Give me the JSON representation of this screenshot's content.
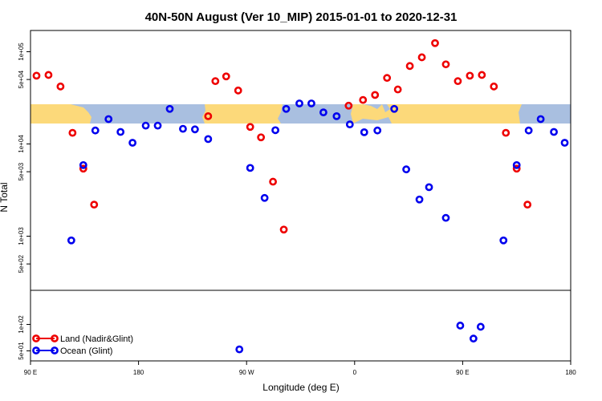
{
  "chart_data": {
    "type": "scatter",
    "title": "40N-50N August (Ver 10_MIP)   2015-01-01 to 2020-12-31",
    "xlabel": "Longitude (deg E)",
    "ylabel": "N Total",
    "x_ticks": [
      {
        "value": 90,
        "label": "90 E"
      },
      {
        "value": 180,
        "label": "180"
      },
      {
        "value": 270,
        "label": "90 W"
      },
      {
        "value": 360,
        "label": "0"
      },
      {
        "value": 450,
        "label": "90 E"
      },
      {
        "value": 540,
        "label": "180"
      }
    ],
    "y_ticks_upper": [
      {
        "value": 500,
        "label": "5e+02"
      },
      {
        "value": 1000,
        "label": "1e+03"
      },
      {
        "value": 5000,
        "label": "5e+03"
      },
      {
        "value": 10000,
        "label": "1e+04"
      },
      {
        "value": 50000,
        "label": "5e+04"
      },
      {
        "value": 100000,
        "label": "1e+05"
      }
    ],
    "y_ticks_lower": [
      {
        "value": 50,
        "label": "5e+01"
      },
      {
        "value": 100,
        "label": "1e+02"
      }
    ],
    "xlim": [
      90,
      540
    ],
    "y_scale": "log",
    "legend_position": "bottom-left",
    "series": [
      {
        "name": "Land (Nadir&Glint)",
        "color": "#ee0000",
        "points": [
          [
            95,
            55000
          ],
          [
            105,
            56000
          ],
          [
            115,
            42000
          ],
          [
            125,
            13200
          ],
          [
            134,
            5400
          ],
          [
            143,
            2200
          ],
          [
            238,
            20000
          ],
          [
            244,
            48000
          ],
          [
            253,
            54000
          ],
          [
            263,
            38000
          ],
          [
            273,
            15300
          ],
          [
            282,
            11800
          ],
          [
            292,
            3900
          ],
          [
            301,
            1180
          ],
          [
            355,
            26000
          ],
          [
            367,
            30000
          ],
          [
            377,
            34000
          ],
          [
            387,
            52000
          ],
          [
            396,
            39000
          ],
          [
            406,
            70000
          ],
          [
            416,
            87000
          ],
          [
            427,
            124000
          ],
          [
            436,
            73000
          ],
          [
            446,
            48000
          ],
          [
            456,
            55000
          ],
          [
            466,
            56000
          ],
          [
            476,
            42000
          ],
          [
            486,
            13200
          ],
          [
            495,
            5400
          ],
          [
            504,
            2200
          ]
        ]
      },
      {
        "name": "Ocean (Glint)",
        "color": "#0000ee",
        "points": [
          [
            124,
            900
          ],
          [
            134,
            5900
          ],
          [
            144,
            14000
          ],
          [
            155,
            18600
          ],
          [
            165,
            13500
          ],
          [
            175,
            10300
          ],
          [
            186,
            15800
          ],
          [
            196,
            15800
          ],
          [
            206,
            24000
          ],
          [
            217,
            14600
          ],
          [
            227,
            14400
          ],
          [
            238,
            11300
          ],
          [
            264,
            52
          ],
          [
            273,
            5500
          ],
          [
            285,
            2600
          ],
          [
            294,
            14100
          ],
          [
            303,
            24000
          ],
          [
            314,
            27500
          ],
          [
            324,
            27500
          ],
          [
            334,
            22000
          ],
          [
            345,
            20000
          ],
          [
            356,
            16300
          ],
          [
            368,
            13400
          ],
          [
            379,
            14000
          ],
          [
            393,
            24000
          ],
          [
            403,
            5300
          ],
          [
            414,
            2500
          ],
          [
            422,
            3400
          ],
          [
            436,
            1580
          ],
          [
            448,
            97
          ],
          [
            459,
            69
          ],
          [
            465,
            94
          ],
          [
            484,
            900
          ],
          [
            495,
            5900
          ],
          [
            505,
            14000
          ],
          [
            515,
            18600
          ],
          [
            526,
            13500
          ],
          [
            535,
            10300
          ]
        ]
      }
    ]
  }
}
